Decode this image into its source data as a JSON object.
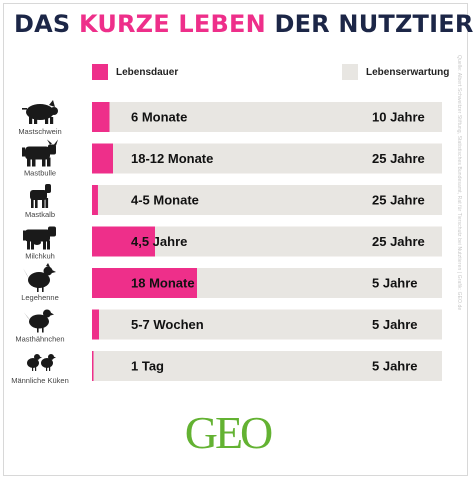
{
  "title": {
    "part1": "DAS ",
    "accent": "KURZE LEBEN",
    "part2": " DER NUTZTIERE"
  },
  "legend": [
    {
      "label": "Lebensdauer",
      "color": "#ee2f8a"
    },
    {
      "label": "Lebenserwartung",
      "color": "#e8e6e2"
    }
  ],
  "credit": "Quelle: Albert Schweitzer Stiftung, Statistisches Bundesamt, Rat für Tierschutz bei Nutztieren | Grafik: GEO.de",
  "logo": "GEO",
  "colors": {
    "title": "#1c2647",
    "accent": "#ee2f8a",
    "track": "#e8e6e2",
    "logo": "#63b232",
    "icon": "#1a1a1a"
  },
  "chart_data": {
    "type": "bar",
    "orientation": "horizontal",
    "unit": "share of life expectancy",
    "series": [
      {
        "name": "Lebensdauer",
        "values": [
          0.05,
          0.06,
          0.017,
          0.18,
          0.3,
          0.02,
          0.004
        ]
      },
      {
        "name": "Lebenserwartung",
        "values": [
          1,
          1,
          1,
          1,
          1,
          1,
          1
        ]
      }
    ],
    "rows": [
      {
        "animal": "Mastschwein",
        "icon": "pig-icon",
        "lifespan": "6 Monate",
        "expectancy": "10 Jahre"
      },
      {
        "animal": "Mastbulle",
        "icon": "bull-icon",
        "lifespan": "18-12 Monate",
        "expectancy": "25 Jahre"
      },
      {
        "animal": "Mastkalb",
        "icon": "calf-icon",
        "lifespan": "4-5 Monate",
        "expectancy": "25 Jahre"
      },
      {
        "animal": "Milchkuh",
        "icon": "cow-icon",
        "lifespan": "4,5 Jahre",
        "expectancy": "25 Jahre"
      },
      {
        "animal": "Legehenne",
        "icon": "hen-icon",
        "lifespan": "18 Monate",
        "expectancy": "5 Jahre"
      },
      {
        "animal": "Masthähnchen",
        "icon": "chicken-icon",
        "lifespan": "5-7 Wochen",
        "expectancy": "5 Jahre"
      },
      {
        "animal": "Männliche Küken",
        "icon": "chicks-icon",
        "lifespan": "1 Tag",
        "expectancy": "5 Jahre"
      }
    ]
  }
}
